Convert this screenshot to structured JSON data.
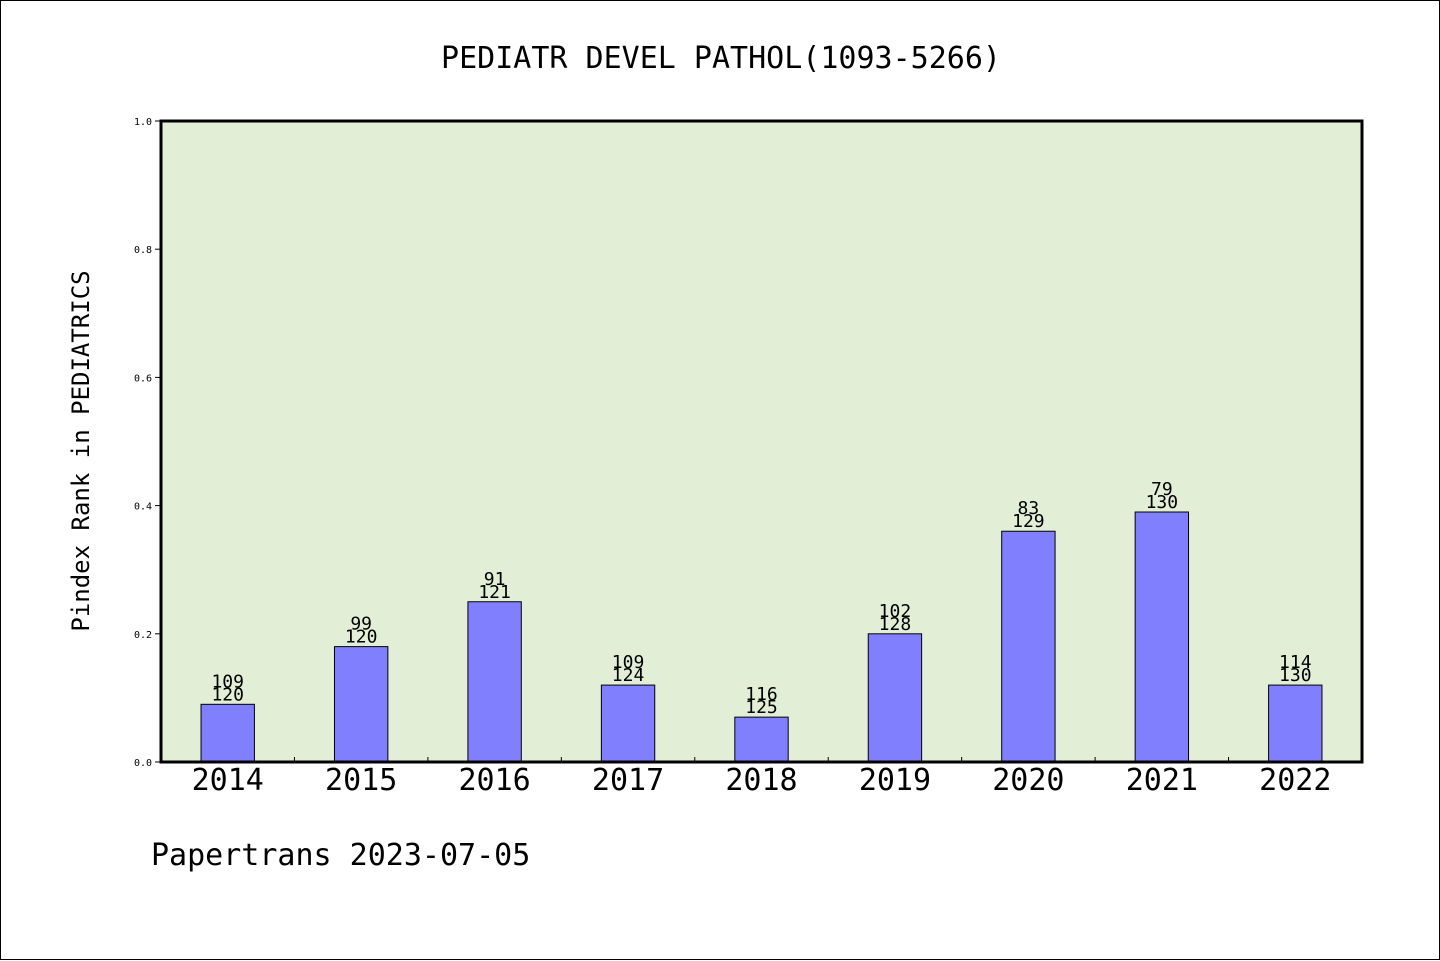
{
  "colors": {
    "plot_bg": "#e2efd6",
    "bar_fill": "#8080ff",
    "axis": "#000000"
  },
  "chart_data": {
    "type": "bar",
    "title": "PEDIATR DEVEL PATHOL(1093-5266)",
    "xlabel": "",
    "ylabel": "Pindex Rank in PEDIATRICS",
    "ylim": [
      0,
      1.0
    ],
    "yticks": [
      "0.0",
      "0.2",
      "0.4",
      "0.6",
      "0.8",
      "1.0"
    ],
    "grid": false,
    "categories": [
      "2014",
      "2015",
      "2016",
      "2017",
      "2018",
      "2019",
      "2020",
      "2021",
      "2022"
    ],
    "values": [
      0.09,
      0.18,
      0.25,
      0.12,
      0.07,
      0.2,
      0.36,
      0.39,
      0.12
    ],
    "rank": [
      "109",
      "99",
      "91",
      "109",
      "116",
      "102",
      "83",
      "79",
      "114"
    ],
    "total": [
      "120",
      "120",
      "121",
      "124",
      "125",
      "128",
      "129",
      "130",
      "130"
    ]
  },
  "footer": "Papertrans 2023-07-05"
}
